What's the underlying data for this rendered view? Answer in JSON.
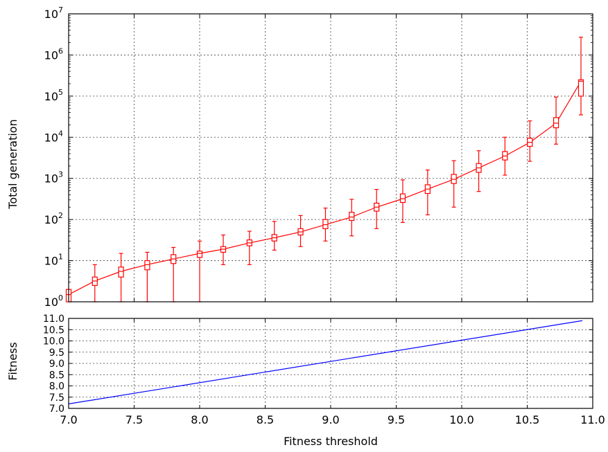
{
  "chart_data": [
    {
      "type": "line",
      "panel": "top",
      "xlabel": "",
      "ylabel": "Total generation",
      "xlim": [
        7.0,
        11.0
      ],
      "ylim": [
        1,
        10000000
      ],
      "yscale": "log",
      "grid": true,
      "y_ticks": [
        {
          "base": "10",
          "exp": "0"
        },
        {
          "base": "10",
          "exp": "1"
        },
        {
          "base": "10",
          "exp": "2"
        },
        {
          "base": "10",
          "exp": "3"
        },
        {
          "base": "10",
          "exp": "4"
        },
        {
          "base": "10",
          "exp": "5"
        },
        {
          "base": "10",
          "exp": "6"
        },
        {
          "base": "10",
          "exp": "7"
        }
      ],
      "color": "#ff0000",
      "series": [
        {
          "x": [
            7.0,
            7.2,
            7.4,
            7.6,
            7.8,
            8.0,
            8.18,
            8.38,
            8.57,
            8.77,
            8.96,
            9.16,
            9.35,
            9.55,
            9.74,
            9.94,
            10.13,
            10.33,
            10.52,
            10.72,
            10.91
          ],
          "y": [
            1.5,
            3.2,
            5.5,
            8,
            11,
            15,
            19,
            27,
            36,
            50,
            75,
            115,
            200,
            320,
            550,
            950,
            1800,
            3500,
            7500,
            22000,
            230000
          ],
          "q1": [
            1,
            2.5,
            4,
            6,
            8.5,
            12,
            16,
            23,
            30,
            42,
            60,
            95,
            160,
            260,
            430,
            750,
            1400,
            2800,
            6000,
            17000,
            100000
          ],
          "q3": [
            2,
            4,
            7,
            10,
            14,
            17,
            22,
            32,
            43,
            60,
            100,
            150,
            250,
            420,
            700,
            1250,
            2300,
            4500,
            9500,
            30000,
            250000
          ],
          "ymin": [
            1,
            1,
            1,
            1,
            1,
            1,
            8,
            8,
            18,
            22,
            30,
            40,
            60,
            85,
            130,
            200,
            480,
            1200,
            2600,
            6800,
            35000
          ],
          "ymax": [
            2,
            8,
            15,
            16,
            21,
            30,
            42,
            52,
            90,
            125,
            190,
            310,
            540,
            920,
            1600,
            2700,
            4700,
            10000,
            25000,
            95000,
            2700000
          ]
        }
      ]
    },
    {
      "type": "line",
      "panel": "bottom",
      "xlabel": "Fitness threshold",
      "ylabel": "Fitness",
      "xlim": [
        7.0,
        11.0
      ],
      "ylim": [
        7.0,
        11.0
      ],
      "x_ticks": [
        "7.0",
        "7.5",
        "8.0",
        "8.5",
        "9.0",
        "9.5",
        "10.0",
        "10.5",
        "11.0"
      ],
      "y_ticks": [
        "7.0",
        "7.5",
        "8.0",
        "8.5",
        "9.0",
        "9.5",
        "10.0",
        "10.5",
        "11.0"
      ],
      "grid": true,
      "color": "#0000ff",
      "series": [
        {
          "x": [
            7.0,
            10.92
          ],
          "y": [
            7.2,
            10.9
          ]
        }
      ]
    }
  ]
}
